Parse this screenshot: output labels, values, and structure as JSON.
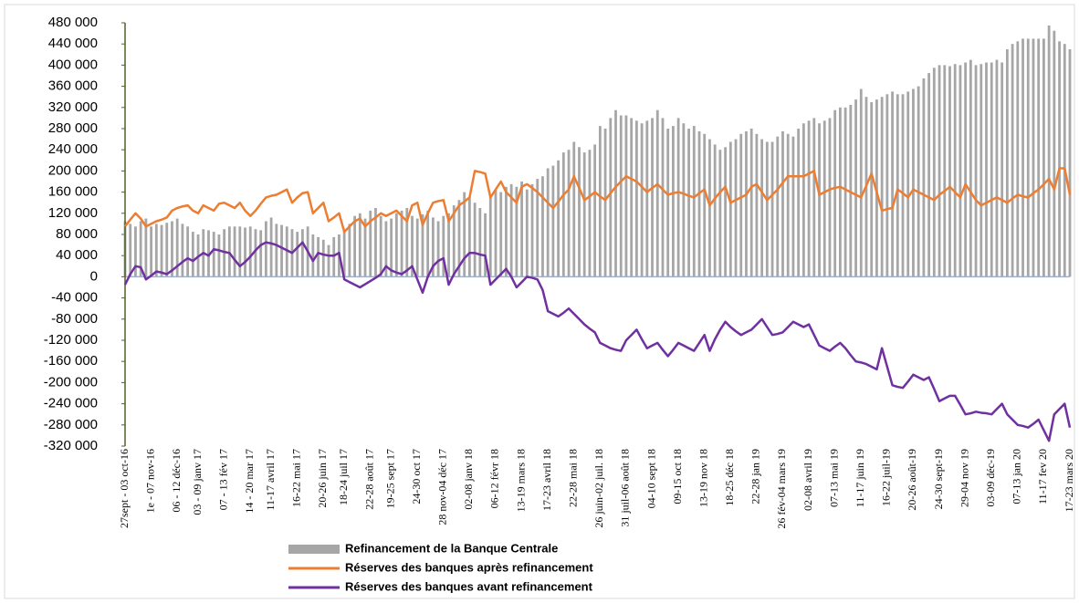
{
  "chart_data": {
    "type": "bar-line",
    "categories": [
      "27sept - 03 oct-16",
      null,
      null,
      null,
      null,
      "1e - 07 nov-16",
      null,
      null,
      null,
      null,
      "06 - 12 déc-16",
      null,
      null,
      null,
      "03 - 09 janv 17",
      null,
      null,
      null,
      null,
      "07 - 13 fév 17",
      null,
      null,
      null,
      null,
      "14 - 20 mar 17",
      null,
      null,
      null,
      "11-17 avril 17",
      null,
      null,
      null,
      null,
      "16-22 mai 17",
      null,
      null,
      null,
      null,
      "20-26 juin 17",
      null,
      null,
      null,
      "18-24 juil 17",
      null,
      null,
      null,
      null,
      "22-28 août 17",
      null,
      null,
      null,
      "19-25 sept 17",
      null,
      null,
      null,
      null,
      "24-30 oct 17",
      null,
      null,
      null,
      null,
      "28 nov-04 déc 17",
      null,
      null,
      null,
      null,
      "02-08 janv 18",
      null,
      null,
      null,
      null,
      "06-12 févr 18",
      null,
      null,
      null,
      null,
      "13-19 mars 18",
      null,
      null,
      null,
      null,
      "17-23 avril 18",
      null,
      null,
      null,
      null,
      "22-28 mai 18",
      null,
      null,
      null,
      null,
      "26 juin-02 juil. 18",
      null,
      null,
      null,
      null,
      "31 juil-06 août 18",
      null,
      null,
      null,
      null,
      "04-10 sept 18",
      null,
      null,
      null,
      null,
      "09-15 oct 18",
      null,
      null,
      null,
      null,
      "13-19 nov 18",
      null,
      null,
      null,
      null,
      "18-25 déc 18",
      null,
      null,
      null,
      null,
      "22-28 jan 19",
      null,
      null,
      null,
      null,
      "26 fév-04 mars 19",
      null,
      null,
      null,
      null,
      "02-08 avril 19",
      null,
      null,
      null,
      null,
      "07-13 mai 19",
      null,
      null,
      null,
      null,
      "11-17 juin 19",
      null,
      null,
      null,
      null,
      "16-22 juil-19",
      null,
      null,
      null,
      null,
      "20-26 août-19",
      null,
      null,
      null,
      null,
      "24-30 sept-19",
      null,
      null,
      null,
      null,
      "29-04 nov 19",
      null,
      null,
      null,
      null,
      "03-09 déc-19",
      null,
      null,
      null,
      null,
      "07-13 jan 20",
      null,
      null,
      null,
      null,
      "11-17 fev 20",
      null,
      null,
      null,
      null,
      "17-23 mars 20"
    ],
    "series": [
      {
        "name": "Refinancement de la Banque Centrale",
        "type": "bar",
        "color": "#a6a6a6",
        "values": [
          105000,
          100000,
          95000,
          105000,
          110000,
          95000,
          100000,
          98000,
          102000,
          105000,
          110000,
          100000,
          95000,
          85000,
          80000,
          90000,
          88000,
          85000,
          80000,
          90000,
          95000,
          95000,
          95000,
          93000,
          95000,
          90000,
          88000,
          105000,
          112000,
          100000,
          98000,
          95000,
          90000,
          85000,
          90000,
          95000,
          80000,
          75000,
          70000,
          60000,
          75000,
          80000,
          90000,
          100000,
          115000,
          120000,
          110000,
          125000,
          130000,
          115000,
          105000,
          110000,
          120000,
          125000,
          130000,
          115000,
          110000,
          118000,
          125000,
          112000,
          105000,
          115000,
          120000,
          135000,
          145000,
          160000,
          150000,
          140000,
          130000,
          120000,
          150000,
          165000,
          160000,
          170000,
          175000,
          170000,
          180000,
          165000,
          175000,
          185000,
          190000,
          205000,
          210000,
          220000,
          235000,
          240000,
          255000,
          245000,
          235000,
          240000,
          250000,
          285000,
          280000,
          300000,
          315000,
          305000,
          305000,
          300000,
          295000,
          290000,
          295000,
          300000,
          315000,
          300000,
          280000,
          285000,
          300000,
          290000,
          280000,
          285000,
          275000,
          270000,
          260000,
          250000,
          240000,
          245000,
          255000,
          260000,
          270000,
          275000,
          280000,
          270000,
          260000,
          255000,
          255000,
          265000,
          275000,
          270000,
          265000,
          280000,
          290000,
          295000,
          300000,
          290000,
          295000,
          300000,
          315000,
          320000,
          320000,
          325000,
          335000,
          355000,
          340000,
          330000,
          335000,
          340000,
          345000,
          350000,
          345000,
          345000,
          350000,
          355000,
          360000,
          375000,
          385000,
          395000,
          400000,
          400000,
          398000,
          402000,
          400000,
          405000,
          410000,
          400000,
          402000,
          405000,
          405000,
          410000,
          405000,
          430000,
          440000,
          445000,
          450000,
          450000,
          450000,
          450000,
          450000,
          475000,
          465000,
          445000,
          440000,
          430000
        ]
      },
      {
        "name": "Réserves des banques après refinancement",
        "type": "line",
        "color": "#ed7d31",
        "values": [
          95000,
          108000,
          120000,
          110000,
          95000,
          100000,
          105000,
          108000,
          112000,
          125000,
          130000,
          133000,
          135000,
          125000,
          120000,
          135000,
          130000,
          125000,
          138000,
          140000,
          135000,
          130000,
          140000,
          125000,
          115000,
          125000,
          138000,
          150000,
          153000,
          155000,
          160000,
          165000,
          140000,
          150000,
          158000,
          160000,
          120000,
          130000,
          140000,
          105000,
          112000,
          120000,
          85000,
          95000,
          105000,
          110000,
          95000,
          105000,
          112000,
          120000,
          115000,
          120000,
          125000,
          115000,
          105000,
          135000,
          140000,
          98000,
          120000,
          140000,
          143000,
          145000,
          105000,
          120000,
          135000,
          142000,
          150000,
          200000,
          198000,
          195000,
          150000,
          165000,
          180000,
          160000,
          150000,
          140000,
          170000,
          175000,
          168000,
          160000,
          150000,
          140000,
          130000,
          142000,
          155000,
          165000,
          190000,
          168000,
          145000,
          152000,
          160000,
          152000,
          145000,
          158000,
          170000,
          180000,
          190000,
          185000,
          180000,
          170000,
          160000,
          168000,
          175000,
          165000,
          155000,
          158000,
          160000,
          157000,
          153000,
          150000,
          158000,
          165000,
          135000,
          148000,
          160000,
          170000,
          140000,
          145000,
          150000,
          155000,
          170000,
          175000,
          160000,
          145000,
          155000,
          165000,
          178000,
          190000,
          190000,
          190000,
          190000,
          195000,
          200000,
          155000,
          160000,
          165000,
          168000,
          170000,
          165000,
          160000,
          155000,
          150000,
          172000,
          195000,
          160000,
          125000,
          128000,
          130000,
          165000,
          158000,
          150000,
          165000,
          160000,
          155000,
          150000,
          145000,
          155000,
          162000,
          170000,
          160000,
          150000,
          175000,
          160000,
          145000,
          135000,
          140000,
          145000,
          150000,
          145000,
          140000,
          148000,
          155000,
          152000,
          150000,
          158000,
          165000,
          175000,
          185000,
          165000,
          205000,
          205000,
          155000
        ]
      },
      {
        "name": "Réserves des banques avant refinancement",
        "type": "line",
        "color": "#7030a0",
        "values": [
          -15000,
          5000,
          20000,
          18000,
          -5000,
          2000,
          10000,
          8000,
          5000,
          12000,
          20000,
          28000,
          35000,
          30000,
          38000,
          45000,
          40000,
          52000,
          50000,
          47000,
          45000,
          32000,
          20000,
          28000,
          38000,
          50000,
          60000,
          65000,
          63000,
          60000,
          55000,
          50000,
          45000,
          55000,
          65000,
          48000,
          30000,
          45000,
          42000,
          40000,
          40000,
          45000,
          -5000,
          -10000,
          -15000,
          -20000,
          -14000,
          -8000,
          -2000,
          5000,
          20000,
          12000,
          8000,
          5000,
          12000,
          20000,
          -5000,
          -30000,
          0,
          20000,
          30000,
          35000,
          -15000,
          5000,
          20000,
          35000,
          45000,
          45000,
          42000,
          40000,
          -15000,
          -5000,
          5000,
          15000,
          0,
          -20000,
          -10000,
          0,
          -2000,
          -5000,
          -25000,
          -65000,
          -70000,
          -75000,
          -68000,
          -60000,
          -70000,
          -80000,
          -90000,
          -98000,
          -105000,
          -125000,
          -130000,
          -135000,
          -138000,
          -140000,
          -120000,
          -110000,
          -100000,
          -118000,
          -135000,
          -130000,
          -125000,
          -138000,
          -150000,
          -138000,
          -125000,
          -130000,
          -135000,
          -140000,
          -125000,
          -110000,
          -140000,
          -118000,
          -100000,
          -85000,
          -95000,
          -103000,
          -110000,
          -105000,
          -100000,
          -90000,
          -80000,
          -95000,
          -110000,
          -108000,
          -105000,
          -95000,
          -85000,
          -90000,
          -95000,
          -90000,
          -110000,
          -130000,
          -135000,
          -140000,
          -132000,
          -125000,
          -135000,
          -148000,
          -160000,
          -162000,
          -165000,
          -170000,
          -175000,
          -135000,
          -170000,
          -205000,
          -208000,
          -210000,
          -198000,
          -185000,
          -190000,
          -195000,
          -190000,
          -212000,
          -235000,
          -230000,
          -225000,
          -225000,
          -242000,
          -260000,
          -258000,
          -255000,
          -257000,
          -258000,
          -260000,
          -250000,
          -240000,
          -260000,
          -270000,
          -280000,
          -282000,
          -285000,
          -278000,
          -270000,
          -290000,
          -310000,
          -260000,
          -250000,
          -240000,
          -285000
        ]
      }
    ],
    "ylim": [
      -320000,
      480000
    ],
    "yticks": [
      {
        "value": 480000,
        "label": "480 000"
      },
      {
        "value": 440000,
        "label": "440 000"
      },
      {
        "value": 400000,
        "label": "400 000"
      },
      {
        "value": 360000,
        "label": "360 000"
      },
      {
        "value": 320000,
        "label": "320 000"
      },
      {
        "value": 280000,
        "label": "280 000"
      },
      {
        "value": 240000,
        "label": "240 000"
      },
      {
        "value": 200000,
        "label": "200 000"
      },
      {
        "value": 160000,
        "label": "160 000"
      },
      {
        "value": 120000,
        "label": "120 000"
      },
      {
        "value": 80000,
        "label": "80 000"
      },
      {
        "value": 40000,
        "label": "40 000"
      },
      0,
      {
        "value": -40000,
        "label": "-40 000"
      },
      {
        "value": -80000,
        "label": "-80 000"
      },
      {
        "value": -120000,
        "label": "-120 000"
      },
      {
        "value": -160000,
        "label": "-160 000"
      },
      {
        "value": -200000,
        "label": "-200 000"
      },
      {
        "value": -240000,
        "label": "-240 000"
      },
      {
        "value": -280000,
        "label": "-280 000"
      },
      {
        "value": -320000,
        "label": "-320 000"
      }
    ],
    "grid": false,
    "legend": "bottom"
  }
}
